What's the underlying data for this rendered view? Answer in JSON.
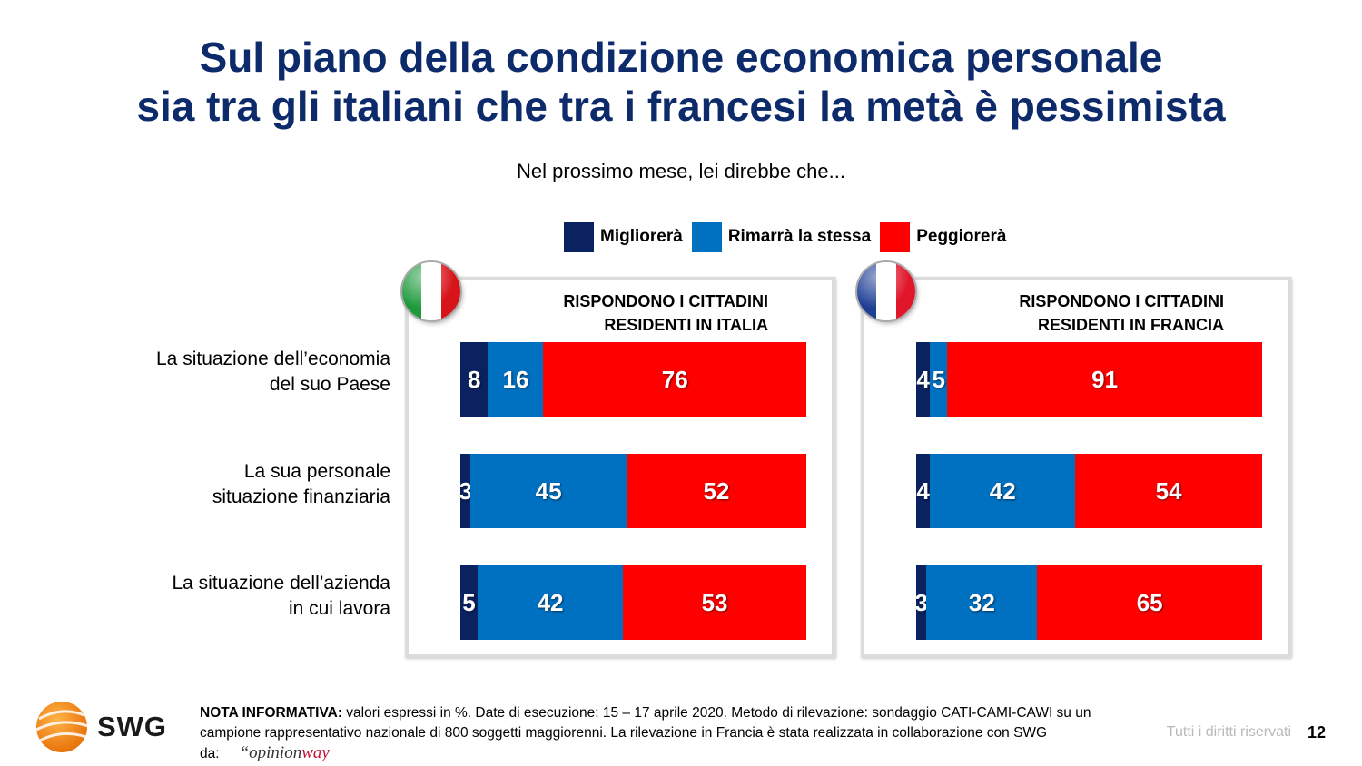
{
  "title": {
    "line1": "Sul piano della condizione economica personale",
    "line2": "sia tra gli italiani che tra i francesi la metà è pessimista"
  },
  "subtitle": "Nel prossimo mese, lei direbbe che...",
  "legend": [
    {
      "label": "Migliorerà",
      "color": "#0a2260"
    },
    {
      "label": "Rimarrà la stessa",
      "color": "#0070c0"
    },
    {
      "label": "Peggiorerà",
      "color": "#ff0000"
    }
  ],
  "row_labels": [
    {
      "line1": "La situazione dell’economia",
      "line2": "del suo Paese"
    },
    {
      "line1": "La sua personale",
      "line2": "situazione finanziaria"
    },
    {
      "line1": "La situazione dell’azienda",
      "line2": "in cui lavora"
    }
  ],
  "panels": [
    {
      "heading_line1": "RISPONDONO I CITTADINI",
      "heading_line2": "RESIDENTI IN ITALIA",
      "flag": "italy-flag-icon"
    },
    {
      "heading_line1": "RISPONDONO I CITTADINI",
      "heading_line2": "RESIDENTI IN FRANCIA",
      "flag": "france-flag-icon"
    }
  ],
  "chart_data": [
    {
      "type": "bar",
      "stacked": true,
      "orientation": "horizontal",
      "title": "RISPONDONO I CITTADINI RESIDENTI IN ITALIA",
      "categories": [
        "La situazione dell’economia del suo Paese",
        "La sua personale situazione finanziaria",
        "La situazione dell’azienda in cui lavora"
      ],
      "series": [
        {
          "name": "Migliorerà",
          "values": [
            8,
            3,
            5
          ],
          "color": "#0a2260"
        },
        {
          "name": "Rimarrà la stessa",
          "values": [
            16,
            45,
            42
          ],
          "color": "#0070c0"
        },
        {
          "name": "Peggiorerà",
          "values": [
            76,
            52,
            53
          ],
          "color": "#ff0000"
        }
      ]
    },
    {
      "type": "bar",
      "stacked": true,
      "orientation": "horizontal",
      "title": "RISPONDONO I CITTADINI RESIDENTI IN FRANCIA",
      "categories": [
        "La situazione dell’economia del suo Paese",
        "La sua personale situazione finanziaria",
        "La situazione dell’azienda in cui lavora"
      ],
      "series": [
        {
          "name": "Migliorerà",
          "values": [
            4,
            4,
            3
          ],
          "color": "#0a2260"
        },
        {
          "name": "Rimarrà la stessa",
          "values": [
            5,
            42,
            32
          ],
          "color": "#0070c0"
        },
        {
          "name": "Peggiorerà",
          "values": [
            91,
            54,
            65
          ],
          "color": "#ff0000"
        }
      ]
    }
  ],
  "note": {
    "label": "NOTA INFORMATIVA:",
    "text": " valori espressi in %. Date di esecuzione: 15 – 17 aprile 2020. Metodo di rilevazione: sondaggio CATI-CAMI-CAWI su un campione rappresentativo nazionale di 800 soggetti maggiorenni. La rilevazione in Francia è stata realizzata in collaborazione con SWG da:",
    "partner_logo": {
      "open_quote": "“",
      "part1": "opinion",
      "part2": "way"
    }
  },
  "logo": {
    "text": "SWG"
  },
  "footer": {
    "rights": "Tutti i diritti riservati",
    "page": "12"
  }
}
